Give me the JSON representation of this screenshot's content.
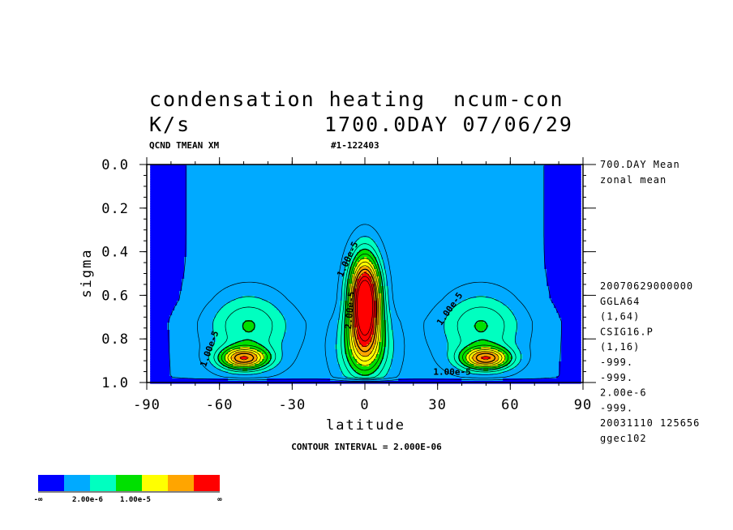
{
  "chart_data": {
    "type": "contour",
    "title_line1": "condensation heating  ncum-con",
    "title_line2_left": "K/s",
    "title_line2_right": "1700.0DAY 07/06/29",
    "var_label": "QCND TMEAN XM",
    "run_label": "#1-122403",
    "xlabel": "latitude",
    "ylabel": "sigma",
    "xlim": [
      -90,
      90
    ],
    "ylim": [
      1.0,
      0.0
    ],
    "xticks": [
      "-90",
      "-60",
      "-30",
      "0",
      "30",
      "60",
      "90"
    ],
    "yticks": [
      "0.0",
      "0.2",
      "0.4",
      "0.6",
      "0.8",
      "1.0"
    ],
    "x_start": -88.6,
    "contour_interval": "CONTOUR INTERVAL = 2.000E-06",
    "levels": [
      2e-06,
      4e-06,
      6e-06,
      8e-06,
      1e-05,
      1.2e-05,
      1.4e-05,
      1.6e-05,
      1.8e-05,
      2e-05,
      2.2e-05,
      2.4e-05,
      2.6e-05
    ],
    "fill_levels": [
      -1000000000.0,
      2e-06,
      6e-06,
      1e-05,
      1.4e-05,
      1.8e-05,
      2.2e-05
    ],
    "fill_colors": [
      "#0000ff",
      "#00aaff",
      "#00ffc0",
      "#00e000",
      "#ffff00",
      "#ffa500",
      "#ff0000"
    ],
    "contour_labels": [
      {
        "text": "1.00e-5",
        "lat": -6,
        "sigma": 0.44,
        "angle": -65
      },
      {
        "text": "2.00e-5",
        "lat": -5,
        "sigma": 0.67,
        "angle": -85
      },
      {
        "text": "1.00e-5",
        "lat": 36,
        "sigma": 0.67,
        "angle": -55
      },
      {
        "text": "1.00e-5",
        "lat": -63,
        "sigma": 0.85,
        "angle": -70
      },
      {
        "text": "1.00e-5",
        "lat": 36,
        "sigma": 0.965,
        "angle": 0
      }
    ],
    "side_info": {
      "mean1": "700.DAY Mean",
      "mean2": "zonal mean",
      "lines": [
        "20070629000000",
        "GGLA64",
        "(1,64)",
        "CSIG16.P",
        "(1,16)",
        "-999.",
        "-999.",
        "2.00e-6",
        "-999.",
        "20031110 125656",
        "ggec102"
      ]
    },
    "colorbar": {
      "colors": [
        "#0000ff",
        "#00aaff",
        "#00ffc0",
        "#00e000",
        "#ffff00",
        "#ffa500",
        "#ff0000"
      ],
      "labels": [
        "-∞",
        "2.00e-6",
        "1.00e-5",
        "∞"
      ]
    },
    "cells": [
      {
        "lat": -50,
        "sigma": 0.89,
        "amp": 1.65e-05,
        "wx": 10,
        "wy": 0.05
      },
      {
        "lat": 50,
        "sigma": 0.89,
        "amp": 1.65e-05,
        "wx": 10,
        "wy": 0.05
      },
      {
        "lat": -48,
        "sigma": 0.74,
        "amp": 7e-06,
        "wx": 16,
        "wy": 0.16
      },
      {
        "lat": 48,
        "sigma": 0.74,
        "amp": 7e-06,
        "wx": 16,
        "wy": 0.16
      },
      {
        "lat": 0,
        "sigma": 0.62,
        "amp": 2.85e-05,
        "wx": 6.5,
        "wy": 0.2
      },
      {
        "lat": 0,
        "sigma": 0.85,
        "amp": 1e-05,
        "wx": 10,
        "wy": 0.15
      }
    ]
  }
}
